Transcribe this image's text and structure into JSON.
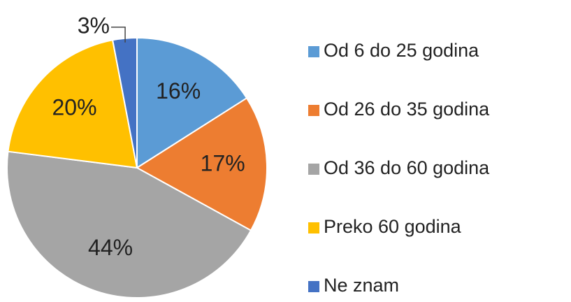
{
  "chart_data": {
    "type": "pie",
    "categories": [
      "Od 6 do 25 godina",
      "Od 26 do 35 godina",
      "Od 36 do 60 godina",
      "Preko 60 godina",
      "Ne znam"
    ],
    "values": [
      16,
      17,
      44,
      20,
      3
    ],
    "value_labels": [
      "16%",
      "17%",
      "44%",
      "20%",
      "3%"
    ],
    "colors": [
      "#5b9bd5",
      "#ed7d31",
      "#a5a5a5",
      "#ffc000",
      "#4472c4"
    ],
    "legend": "right"
  }
}
